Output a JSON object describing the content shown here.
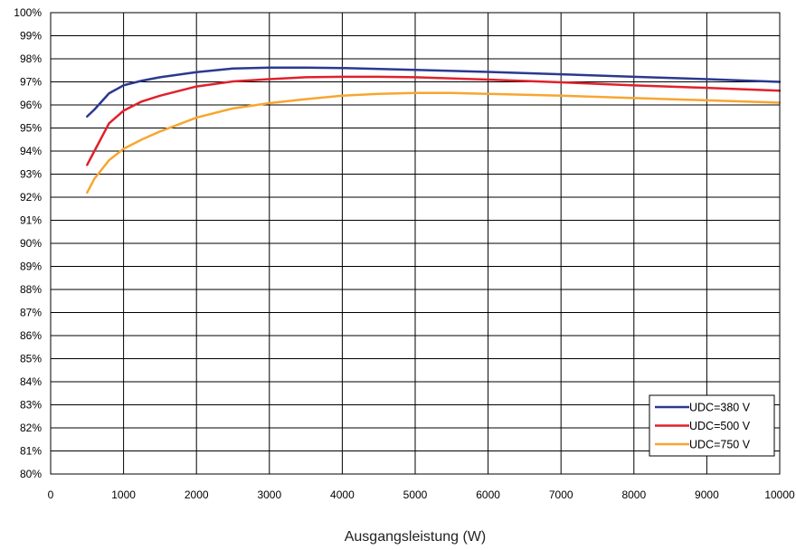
{
  "chart_data": {
    "type": "line",
    "title": "",
    "xlabel": "Ausgangsleistung (W)",
    "ylabel": "",
    "xlim": [
      0,
      10000
    ],
    "ylim": [
      80,
      100
    ],
    "x_ticks": [
      0,
      1000,
      2000,
      3000,
      4000,
      5000,
      6000,
      7000,
      8000,
      9000,
      10000
    ],
    "x_tick_labels": [
      "0",
      "1000",
      "2000",
      "3000",
      "4000",
      "5000",
      "6000",
      "7000",
      "8000",
      "9000",
      "10000"
    ],
    "y_ticks": [
      80,
      81,
      82,
      83,
      84,
      85,
      86,
      87,
      88,
      89,
      90,
      91,
      92,
      93,
      94,
      95,
      96,
      97,
      98,
      99,
      100
    ],
    "y_tick_labels": [
      "80%",
      "81%",
      "82%",
      "83%",
      "84%",
      "85%",
      "86%",
      "87%",
      "88%",
      "89%",
      "90%",
      "91%",
      "92%",
      "93%",
      "94%",
      "95%",
      "96%",
      "97%",
      "98%",
      "99%",
      "100%"
    ],
    "grid": true,
    "legend_position": "bottom-right",
    "series": [
      {
        "name": "UDC=380 V",
        "color": "#2b3990",
        "x": [
          500,
          600,
          800,
          1000,
          1250,
          1500,
          2000,
          2500,
          3000,
          3500,
          4000,
          5000,
          6000,
          7000,
          8000,
          9000,
          10000
        ],
        "y": [
          95.5,
          95.8,
          96.5,
          96.85,
          97.05,
          97.2,
          97.42,
          97.58,
          97.62,
          97.62,
          97.6,
          97.52,
          97.43,
          97.33,
          97.22,
          97.12,
          97.0
        ]
      },
      {
        "name": "UDC=500 V",
        "color": "#e0212b",
        "x": [
          500,
          600,
          800,
          1000,
          1250,
          1500,
          2000,
          2500,
          3000,
          3500,
          4000,
          4500,
          5000,
          6000,
          7000,
          8000,
          9000,
          10000
        ],
        "y": [
          93.4,
          94.0,
          95.2,
          95.75,
          96.15,
          96.4,
          96.8,
          97.02,
          97.12,
          97.2,
          97.22,
          97.22,
          97.2,
          97.1,
          96.98,
          96.85,
          96.74,
          96.62
        ]
      },
      {
        "name": "UDC=750 V",
        "color": "#f7a631",
        "x": [
          500,
          600,
          800,
          1000,
          1250,
          1500,
          2000,
          2500,
          3000,
          3500,
          4000,
          4500,
          5000,
          5500,
          6000,
          7000,
          8000,
          9000,
          10000
        ],
        "y": [
          92.2,
          92.8,
          93.6,
          94.1,
          94.5,
          94.85,
          95.45,
          95.85,
          96.08,
          96.25,
          96.4,
          96.48,
          96.52,
          96.52,
          96.48,
          96.4,
          96.3,
          96.2,
          96.1
        ]
      }
    ]
  }
}
